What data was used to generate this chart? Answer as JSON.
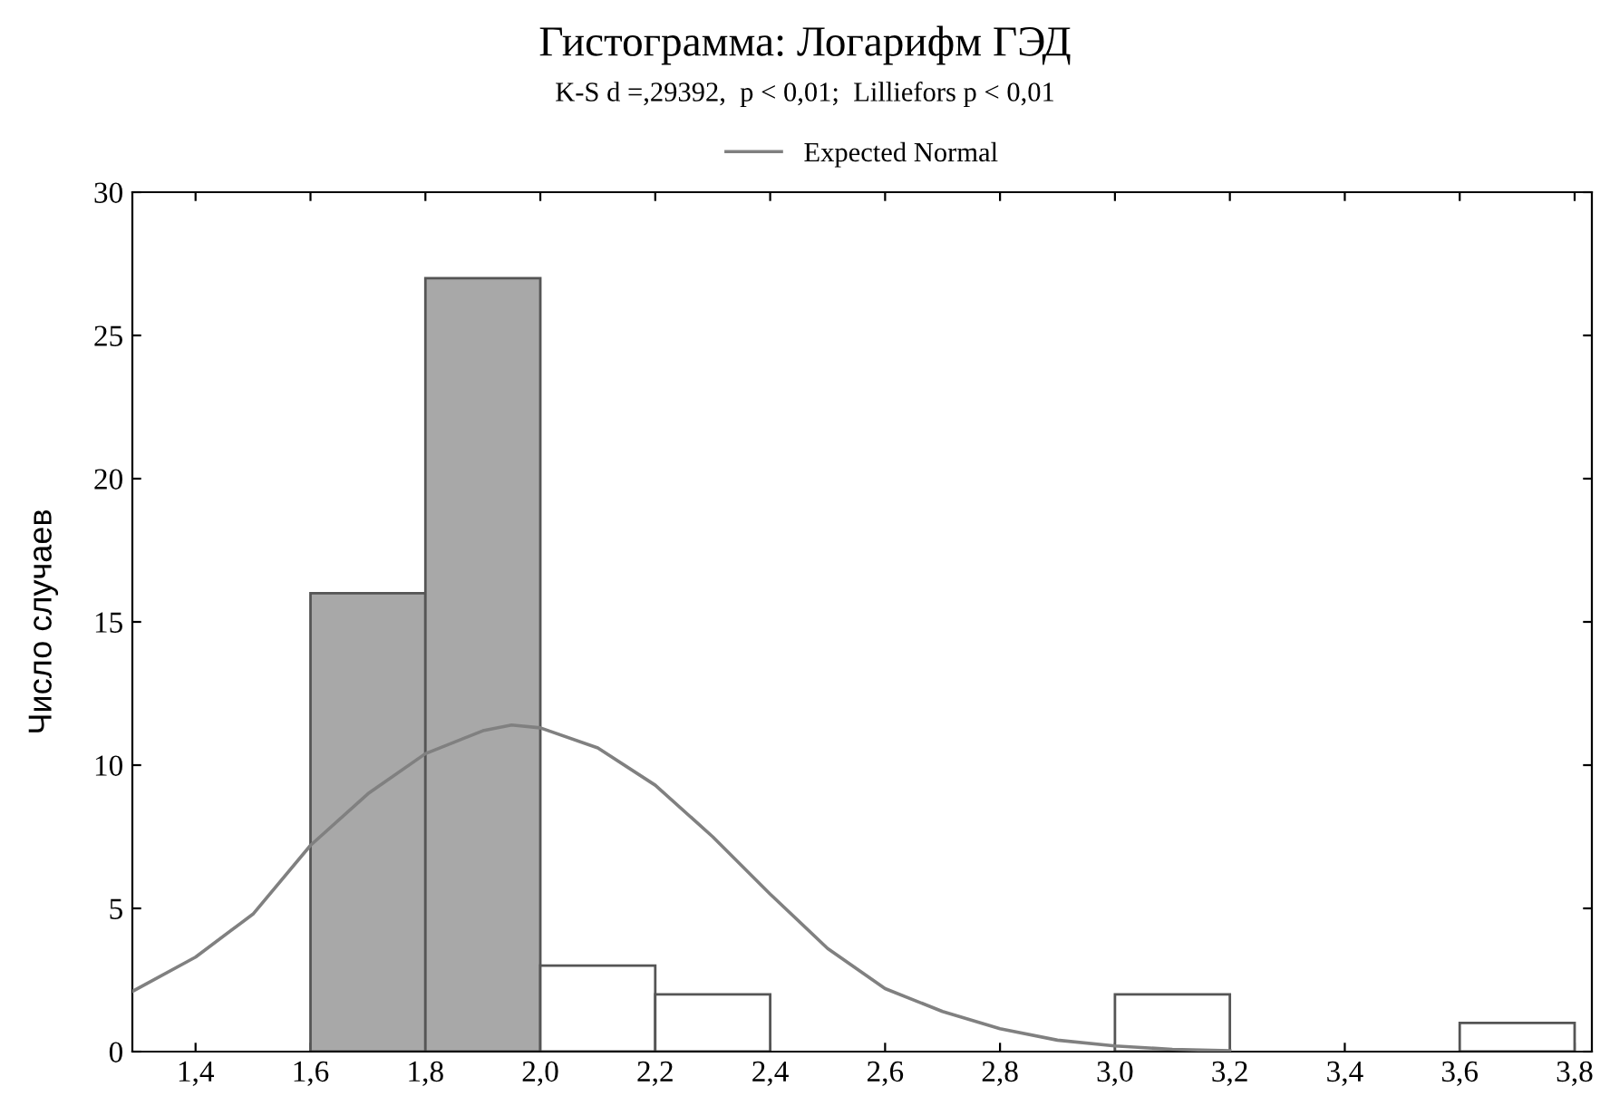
{
  "chart_data": {
    "type": "histogram",
    "title": "Гистограмма: Логарифм ГЭД",
    "subtitle": "K-S d =,29392,  p < 0,01;  Lilliefors p < 0,01",
    "ylabel": "Число случаев",
    "bins": [
      1.6,
      1.8,
      2.0,
      2.2,
      2.4,
      2.6,
      2.8,
      3.0,
      3.2,
      3.4,
      3.6,
      3.8
    ],
    "values": [
      16,
      27,
      3,
      2,
      0,
      0,
      0,
      2,
      0,
      0,
      1
    ],
    "colors": [
      "#a8a8a8",
      "#a8a8a8",
      "#ffffff",
      "#ffffff",
      "#ffffff",
      "#ffffff",
      "#ffffff",
      "#ffffff",
      "#ffffff",
      "#ffffff",
      "#ffffff"
    ],
    "series": [
      {
        "name": "Expected Normal",
        "type": "line",
        "color": "#808080",
        "x": [
          1.29,
          1.4,
          1.5,
          1.6,
          1.7,
          1.8,
          1.9,
          1.95,
          2.0,
          2.1,
          2.2,
          2.3,
          2.4,
          2.5,
          2.6,
          2.7,
          2.8,
          2.9,
          3.0,
          3.1,
          3.2
        ],
        "values": [
          2.1,
          3.3,
          4.8,
          7.2,
          9.0,
          10.4,
          11.2,
          11.4,
          11.3,
          10.6,
          9.3,
          7.5,
          5.5,
          3.6,
          2.2,
          1.4,
          0.8,
          0.4,
          0.2,
          0.08,
          0.03
        ]
      }
    ],
    "xlim": [
      1.29,
      3.83
    ],
    "xticks": [
      {
        "value": 1.4,
        "label": "1,4"
      },
      {
        "value": 1.6,
        "label": "1,6"
      },
      {
        "value": 1.8,
        "label": "1,8"
      },
      {
        "value": 2.0,
        "label": "2,0"
      },
      {
        "value": 2.2,
        "label": "2,2"
      },
      {
        "value": 2.4,
        "label": "2,4"
      },
      {
        "value": 2.6,
        "label": "2,6"
      },
      {
        "value": 2.8,
        "label": "2,8"
      },
      {
        "value": 3.0,
        "label": "3,0"
      },
      {
        "value": 3.2,
        "label": "3,2"
      },
      {
        "value": 3.4,
        "label": "3,4"
      },
      {
        "value": 3.6,
        "label": "3,6"
      },
      {
        "value": 3.8,
        "label": "3,8"
      }
    ],
    "ylim": [
      0,
      30
    ],
    "yticks": [
      0,
      5,
      10,
      15,
      20,
      25,
      30
    ],
    "legend": "top",
    "grid": false
  }
}
